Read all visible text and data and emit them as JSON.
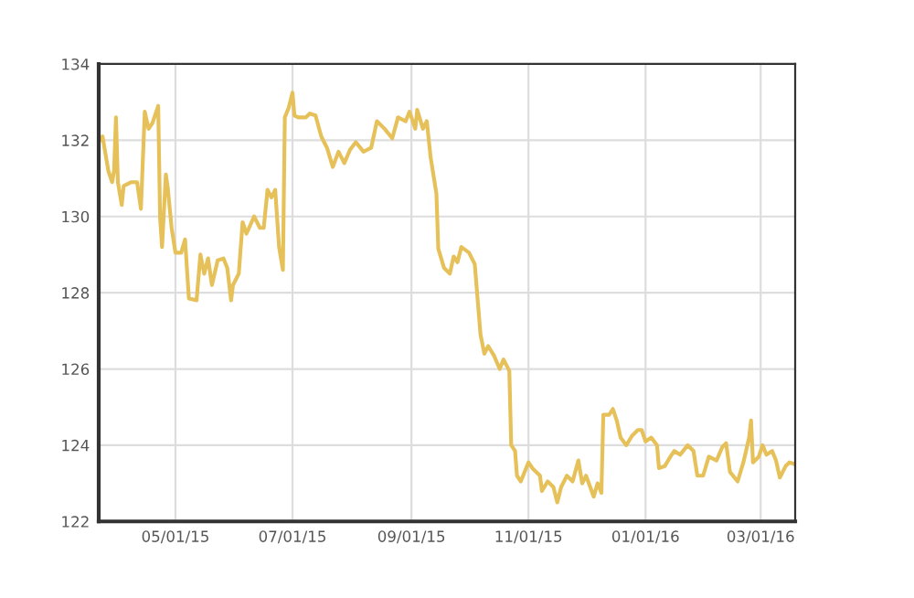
{
  "chart_data": {
    "type": "line",
    "color": "#e6c15a",
    "grid": true,
    "marker": "none",
    "line_style": "solid",
    "xlim": [
      "2015-03-22",
      "2016-03-19"
    ],
    "xticks": [
      {
        "value": "2015-05-01",
        "label": "05/01/15"
      },
      {
        "value": "2015-07-01",
        "label": "07/01/15"
      },
      {
        "value": "2015-09-01",
        "label": "09/01/15"
      },
      {
        "value": "2015-11-01",
        "label": "11/01/15"
      },
      {
        "value": "2016-01-01",
        "label": "01/01/16"
      },
      {
        "value": "2016-03-01",
        "label": "03/01/16"
      }
    ],
    "ylim": [
      122,
      134
    ],
    "yticks": [
      122,
      124,
      126,
      128,
      130,
      132,
      134
    ],
    "x": [
      "2015-03-22",
      "2015-03-24",
      "2015-03-27",
      "2015-03-29",
      "2015-03-30",
      "2015-03-31",
      "2015-04-01",
      "2015-04-03",
      "2015-04-04",
      "2015-04-08",
      "2015-04-11",
      "2015-04-13",
      "2015-04-15",
      "2015-04-17",
      "2015-04-19",
      "2015-04-22",
      "2015-04-23",
      "2015-04-24",
      "2015-04-26",
      "2015-04-27",
      "2015-04-29",
      "2015-05-01",
      "2015-05-04",
      "2015-05-06",
      "2015-05-08",
      "2015-05-12",
      "2015-05-14",
      "2015-05-16",
      "2015-05-18",
      "2015-05-20",
      "2015-05-23",
      "2015-05-26",
      "2015-05-28",
      "2015-05-30",
      "2015-05-31",
      "2015-06-03",
      "2015-06-05",
      "2015-06-07",
      "2015-06-11",
      "2015-06-14",
      "2015-06-16",
      "2015-06-18",
      "2015-06-20",
      "2015-06-22",
      "2015-06-24",
      "2015-06-26",
      "2015-06-27",
      "2015-06-29",
      "2015-07-01",
      "2015-07-02",
      "2015-07-04",
      "2015-07-08",
      "2015-07-10",
      "2015-07-13",
      "2015-07-16",
      "2015-07-19",
      "2015-07-22",
      "2015-07-25",
      "2015-07-28",
      "2015-07-31",
      "2015-08-03",
      "2015-08-07",
      "2015-08-11",
      "2015-08-14",
      "2015-08-18",
      "2015-08-22",
      "2015-08-25",
      "2015-08-29",
      "2015-08-31",
      "2015-09-03",
      "2015-09-04",
      "2015-09-07",
      "2015-09-09",
      "2015-09-11",
      "2015-09-14",
      "2015-09-15",
      "2015-09-18",
      "2015-09-21",
      "2015-09-23",
      "2015-09-25",
      "2015-09-27",
      "2015-10-01",
      "2015-10-04",
      "2015-10-07",
      "2015-10-09",
      "2015-10-11",
      "2015-10-14",
      "2015-10-17",
      "2015-10-19",
      "2015-10-22",
      "2015-10-23",
      "2015-10-25",
      "2015-10-26",
      "2015-10-28",
      "2015-10-30",
      "2015-11-01",
      "2015-11-03",
      "2015-11-07",
      "2015-11-08",
      "2015-11-11",
      "2015-11-14",
      "2015-11-16",
      "2015-11-18",
      "2015-11-21",
      "2015-11-24",
      "2015-11-27",
      "2015-11-29",
      "2015-12-01",
      "2015-12-05",
      "2015-12-07",
      "2015-12-09",
      "2015-12-10",
      "2015-12-13",
      "2015-12-15",
      "2015-12-17",
      "2015-12-19",
      "2015-12-22",
      "2015-12-25",
      "2015-12-28",
      "2015-12-30",
      "2016-01-01",
      "2016-01-04",
      "2016-01-07",
      "2016-01-08",
      "2016-01-11",
      "2016-01-14",
      "2016-01-16",
      "2016-01-19",
      "2016-01-23",
      "2016-01-26",
      "2016-01-28",
      "2016-01-31",
      "2016-02-03",
      "2016-02-07",
      "2016-02-10",
      "2016-02-12",
      "2016-02-14",
      "2016-02-18",
      "2016-02-21",
      "2016-02-24",
      "2016-02-25",
      "2016-02-26",
      "2016-02-29",
      "2016-03-02",
      "2016-03-04",
      "2016-03-07",
      "2016-03-09",
      "2016-03-11",
      "2016-03-14",
      "2016-03-16",
      "2016-03-19"
    ],
    "values": [
      131.95,
      132.1,
      131.2,
      130.9,
      131.2,
      132.6,
      130.9,
      130.3,
      130.8,
      130.9,
      130.9,
      130.2,
      132.75,
      132.3,
      132.45,
      132.9,
      129.95,
      129.2,
      131.1,
      130.75,
      129.7,
      129.05,
      129.05,
      129.4,
      127.85,
      127.8,
      129.0,
      128.5,
      128.9,
      128.2,
      128.85,
      128.9,
      128.65,
      127.8,
      128.2,
      128.5,
      129.85,
      129.55,
      130.0,
      129.7,
      129.7,
      130.7,
      130.5,
      130.7,
      129.2,
      128.6,
      132.6,
      132.85,
      133.25,
      132.65,
      132.6,
      132.6,
      132.7,
      132.65,
      132.1,
      131.8,
      131.3,
      131.7,
      131.4,
      131.75,
      131.95,
      131.7,
      131.8,
      132.5,
      132.3,
      132.05,
      132.6,
      132.5,
      132.75,
      132.3,
      132.8,
      132.3,
      132.5,
      131.55,
      130.6,
      129.15,
      128.65,
      128.5,
      128.95,
      128.8,
      129.2,
      129.05,
      128.75,
      126.9,
      126.4,
      126.6,
      126.35,
      126.0,
      126.25,
      125.95,
      124.0,
      123.85,
      123.2,
      123.05,
      123.3,
      123.55,
      123.4,
      123.2,
      122.8,
      123.05,
      122.9,
      122.5,
      122.9,
      123.2,
      123.05,
      123.6,
      123.0,
      123.2,
      122.65,
      123.0,
      122.75,
      124.8,
      124.8,
      124.95,
      124.65,
      124.2,
      124.0,
      124.25,
      124.4,
      124.4,
      124.1,
      124.2,
      124.0,
      123.4,
      123.45,
      123.7,
      123.85,
      123.75,
      124.0,
      123.85,
      123.2,
      123.2,
      123.7,
      123.6,
      123.95,
      124.05,
      123.3,
      123.05,
      123.55,
      124.2,
      124.65,
      123.55,
      123.7,
      124.0,
      123.75,
      123.85,
      123.6,
      123.15,
      123.45,
      123.55,
      123.5
    ]
  }
}
